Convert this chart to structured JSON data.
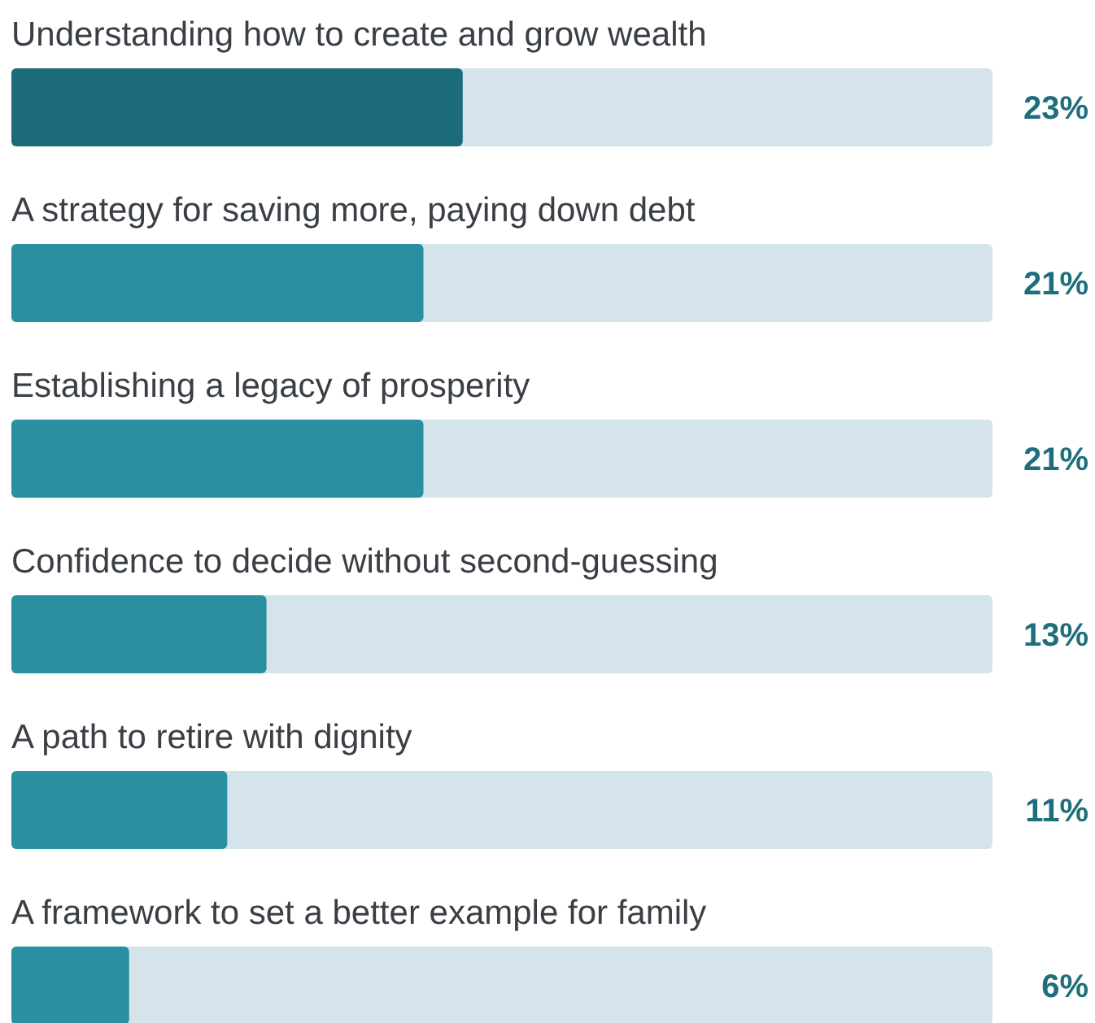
{
  "chart_data": {
    "type": "bar",
    "orientation": "horizontal",
    "categories": [
      "Understanding how to create and grow wealth",
      "A strategy for saving more, paying down debt",
      "Establishing a legacy of prosperity",
      "Confidence to decide without second-guessing",
      "A path to retire with dignity",
      "A framework to set a better example for family"
    ],
    "values": [
      23,
      21,
      21,
      13,
      11,
      6
    ],
    "colors": [
      "#1b6b7a",
      "#2a8fa0",
      "#2a8fa0",
      "#2a8fa0",
      "#2a8fa0",
      "#2a8fa0"
    ],
    "value_labels": [
      "23%",
      "21%",
      "21%",
      "13%",
      "11%",
      "6%"
    ],
    "xlim": [
      0,
      50
    ],
    "tick_labels": false
  }
}
